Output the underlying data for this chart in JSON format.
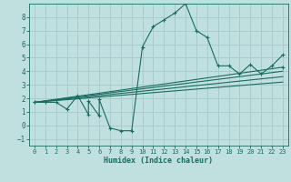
{
  "xlabel": "Humidex (Indice chaleur)",
  "background_color": "#c0e0e0",
  "grid_color": "#a8cccc",
  "line_color": "#1a6b60",
  "xlim": [
    -0.5,
    23.5
  ],
  "ylim": [
    -1.5,
    9.0
  ],
  "xticks": [
    0,
    1,
    2,
    3,
    4,
    5,
    6,
    7,
    8,
    9,
    10,
    11,
    12,
    13,
    14,
    15,
    16,
    17,
    18,
    19,
    20,
    21,
    22,
    23
  ],
  "yticks": [
    -1,
    0,
    1,
    2,
    3,
    4,
    5,
    6,
    7,
    8
  ],
  "series": [
    {
      "x": [
        0,
        1,
        2,
        3,
        4,
        5,
        5,
        6,
        6,
        7,
        8,
        9,
        10,
        11,
        12,
        13,
        14,
        15,
        16,
        17,
        18,
        19,
        20,
        21,
        22,
        23
      ],
      "y": [
        1.7,
        1.7,
        1.7,
        1.2,
        2.2,
        0.8,
        1.8,
        0.7,
        1.9,
        -0.2,
        -0.4,
        -0.4,
        5.8,
        7.3,
        7.8,
        8.3,
        9.0,
        7.0,
        6.5,
        4.4,
        4.4,
        3.8,
        4.5,
        3.8,
        4.4,
        5.2
      ]
    },
    {
      "x": [
        0,
        23
      ],
      "y": [
        1.7,
        4.3
      ]
    },
    {
      "x": [
        0,
        23
      ],
      "y": [
        1.7,
        4.0
      ]
    },
    {
      "x": [
        0,
        23
      ],
      "y": [
        1.7,
        3.6
      ]
    },
    {
      "x": [
        0,
        23
      ],
      "y": [
        1.7,
        3.2
      ]
    }
  ]
}
